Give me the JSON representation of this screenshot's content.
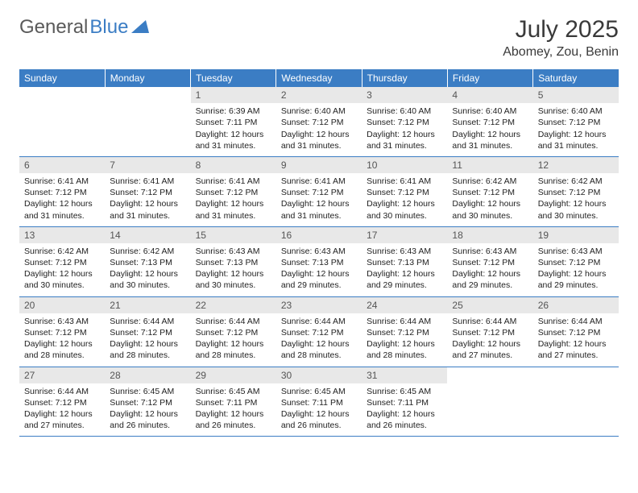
{
  "logo": {
    "part1": "General",
    "part2": "Blue"
  },
  "title": "July 2025",
  "location": "Abomey, Zou, Benin",
  "colors": {
    "header_bg": "#3b7dc4",
    "header_text": "#ffffff",
    "daynum_bg": "#e8e8e8",
    "border": "#3b7dc4"
  },
  "weekdays": [
    "Sunday",
    "Monday",
    "Tuesday",
    "Wednesday",
    "Thursday",
    "Friday",
    "Saturday"
  ],
  "weeks": [
    [
      {
        "n": "",
        "sr": "",
        "ss": "",
        "dl": ""
      },
      {
        "n": "",
        "sr": "",
        "ss": "",
        "dl": ""
      },
      {
        "n": "1",
        "sr": "Sunrise: 6:39 AM",
        "ss": "Sunset: 7:11 PM",
        "dl": "Daylight: 12 hours and 31 minutes."
      },
      {
        "n": "2",
        "sr": "Sunrise: 6:40 AM",
        "ss": "Sunset: 7:12 PM",
        "dl": "Daylight: 12 hours and 31 minutes."
      },
      {
        "n": "3",
        "sr": "Sunrise: 6:40 AM",
        "ss": "Sunset: 7:12 PM",
        "dl": "Daylight: 12 hours and 31 minutes."
      },
      {
        "n": "4",
        "sr": "Sunrise: 6:40 AM",
        "ss": "Sunset: 7:12 PM",
        "dl": "Daylight: 12 hours and 31 minutes."
      },
      {
        "n": "5",
        "sr": "Sunrise: 6:40 AM",
        "ss": "Sunset: 7:12 PM",
        "dl": "Daylight: 12 hours and 31 minutes."
      }
    ],
    [
      {
        "n": "6",
        "sr": "Sunrise: 6:41 AM",
        "ss": "Sunset: 7:12 PM",
        "dl": "Daylight: 12 hours and 31 minutes."
      },
      {
        "n": "7",
        "sr": "Sunrise: 6:41 AM",
        "ss": "Sunset: 7:12 PM",
        "dl": "Daylight: 12 hours and 31 minutes."
      },
      {
        "n": "8",
        "sr": "Sunrise: 6:41 AM",
        "ss": "Sunset: 7:12 PM",
        "dl": "Daylight: 12 hours and 31 minutes."
      },
      {
        "n": "9",
        "sr": "Sunrise: 6:41 AM",
        "ss": "Sunset: 7:12 PM",
        "dl": "Daylight: 12 hours and 31 minutes."
      },
      {
        "n": "10",
        "sr": "Sunrise: 6:41 AM",
        "ss": "Sunset: 7:12 PM",
        "dl": "Daylight: 12 hours and 30 minutes."
      },
      {
        "n": "11",
        "sr": "Sunrise: 6:42 AM",
        "ss": "Sunset: 7:12 PM",
        "dl": "Daylight: 12 hours and 30 minutes."
      },
      {
        "n": "12",
        "sr": "Sunrise: 6:42 AM",
        "ss": "Sunset: 7:12 PM",
        "dl": "Daylight: 12 hours and 30 minutes."
      }
    ],
    [
      {
        "n": "13",
        "sr": "Sunrise: 6:42 AM",
        "ss": "Sunset: 7:12 PM",
        "dl": "Daylight: 12 hours and 30 minutes."
      },
      {
        "n": "14",
        "sr": "Sunrise: 6:42 AM",
        "ss": "Sunset: 7:13 PM",
        "dl": "Daylight: 12 hours and 30 minutes."
      },
      {
        "n": "15",
        "sr": "Sunrise: 6:43 AM",
        "ss": "Sunset: 7:13 PM",
        "dl": "Daylight: 12 hours and 30 minutes."
      },
      {
        "n": "16",
        "sr": "Sunrise: 6:43 AM",
        "ss": "Sunset: 7:13 PM",
        "dl": "Daylight: 12 hours and 29 minutes."
      },
      {
        "n": "17",
        "sr": "Sunrise: 6:43 AM",
        "ss": "Sunset: 7:13 PM",
        "dl": "Daylight: 12 hours and 29 minutes."
      },
      {
        "n": "18",
        "sr": "Sunrise: 6:43 AM",
        "ss": "Sunset: 7:12 PM",
        "dl": "Daylight: 12 hours and 29 minutes."
      },
      {
        "n": "19",
        "sr": "Sunrise: 6:43 AM",
        "ss": "Sunset: 7:12 PM",
        "dl": "Daylight: 12 hours and 29 minutes."
      }
    ],
    [
      {
        "n": "20",
        "sr": "Sunrise: 6:43 AM",
        "ss": "Sunset: 7:12 PM",
        "dl": "Daylight: 12 hours and 28 minutes."
      },
      {
        "n": "21",
        "sr": "Sunrise: 6:44 AM",
        "ss": "Sunset: 7:12 PM",
        "dl": "Daylight: 12 hours and 28 minutes."
      },
      {
        "n": "22",
        "sr": "Sunrise: 6:44 AM",
        "ss": "Sunset: 7:12 PM",
        "dl": "Daylight: 12 hours and 28 minutes."
      },
      {
        "n": "23",
        "sr": "Sunrise: 6:44 AM",
        "ss": "Sunset: 7:12 PM",
        "dl": "Daylight: 12 hours and 28 minutes."
      },
      {
        "n": "24",
        "sr": "Sunrise: 6:44 AM",
        "ss": "Sunset: 7:12 PM",
        "dl": "Daylight: 12 hours and 28 minutes."
      },
      {
        "n": "25",
        "sr": "Sunrise: 6:44 AM",
        "ss": "Sunset: 7:12 PM",
        "dl": "Daylight: 12 hours and 27 minutes."
      },
      {
        "n": "26",
        "sr": "Sunrise: 6:44 AM",
        "ss": "Sunset: 7:12 PM",
        "dl": "Daylight: 12 hours and 27 minutes."
      }
    ],
    [
      {
        "n": "27",
        "sr": "Sunrise: 6:44 AM",
        "ss": "Sunset: 7:12 PM",
        "dl": "Daylight: 12 hours and 27 minutes."
      },
      {
        "n": "28",
        "sr": "Sunrise: 6:45 AM",
        "ss": "Sunset: 7:12 PM",
        "dl": "Daylight: 12 hours and 26 minutes."
      },
      {
        "n": "29",
        "sr": "Sunrise: 6:45 AM",
        "ss": "Sunset: 7:11 PM",
        "dl": "Daylight: 12 hours and 26 minutes."
      },
      {
        "n": "30",
        "sr": "Sunrise: 6:45 AM",
        "ss": "Sunset: 7:11 PM",
        "dl": "Daylight: 12 hours and 26 minutes."
      },
      {
        "n": "31",
        "sr": "Sunrise: 6:45 AM",
        "ss": "Sunset: 7:11 PM",
        "dl": "Daylight: 12 hours and 26 minutes."
      },
      {
        "n": "",
        "sr": "",
        "ss": "",
        "dl": ""
      },
      {
        "n": "",
        "sr": "",
        "ss": "",
        "dl": ""
      }
    ]
  ]
}
